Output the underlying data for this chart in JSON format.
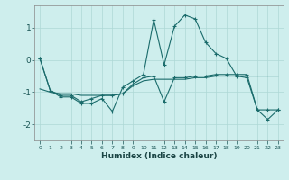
{
  "xlabel": "Humidex (Indice chaleur)",
  "background_color": "#ceeeed",
  "grid_color": "#aed8d5",
  "line_color": "#1a6b6b",
  "xlim": [
    -0.5,
    23.5
  ],
  "ylim": [
    -2.5,
    1.7
  ],
  "x": [
    0,
    1,
    2,
    3,
    4,
    5,
    6,
    7,
    8,
    9,
    10,
    11,
    12,
    13,
    14,
    15,
    16,
    17,
    18,
    19,
    20,
    21,
    22,
    23
  ],
  "line1_y": [
    0.05,
    -0.95,
    -1.15,
    -1.15,
    -1.35,
    -1.35,
    -1.2,
    -1.6,
    -0.85,
    -0.65,
    -0.45,
    1.25,
    -0.15,
    1.05,
    1.4,
    1.28,
    0.55,
    0.2,
    0.05,
    -0.5,
    -0.55,
    -1.55,
    -1.85,
    -1.55
  ],
  "line2_y": [
    0.05,
    -0.95,
    -1.1,
    -1.1,
    -1.3,
    -1.2,
    -1.1,
    -1.1,
    -1.05,
    -0.75,
    -0.55,
    -0.5,
    -1.3,
    -0.55,
    -0.55,
    -0.5,
    -0.5,
    -0.45,
    -0.45,
    -0.45,
    -0.45,
    -1.55,
    -1.55,
    -1.55
  ],
  "line3_y": [
    -0.9,
    -1.0,
    -1.05,
    -1.05,
    -1.1,
    -1.1,
    -1.1,
    -1.1,
    -1.05,
    -0.8,
    -0.65,
    -0.6,
    -0.6,
    -0.6,
    -0.6,
    -0.55,
    -0.55,
    -0.5,
    -0.5,
    -0.5,
    -0.5,
    -0.5,
    -0.5,
    -0.5
  ],
  "yticks": [
    -2,
    -1,
    0,
    1
  ],
  "xticks": [
    0,
    1,
    2,
    3,
    4,
    5,
    6,
    7,
    8,
    9,
    10,
    11,
    12,
    13,
    14,
    15,
    16,
    17,
    18,
    19,
    20,
    21,
    22,
    23
  ]
}
